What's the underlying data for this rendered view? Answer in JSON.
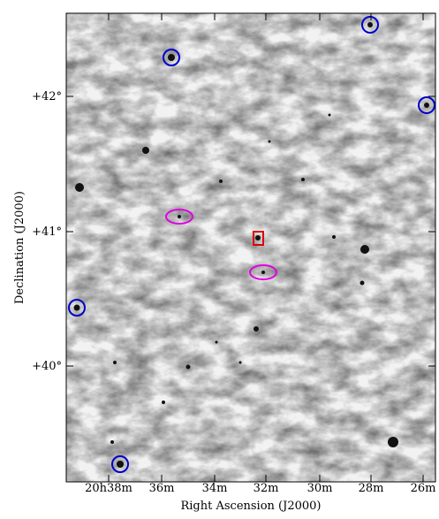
{
  "figure": {
    "x_axis": {
      "label": "Right Ascension (J2000)",
      "ticks": [
        "20h38m",
        "36m",
        "34m",
        "32m",
        "30m",
        "28m",
        "26m"
      ]
    },
    "y_axis": {
      "label": "Declination (J2000)",
      "ticks": [
        "+42°",
        "+41°",
        "+40°"
      ]
    }
  }
}
